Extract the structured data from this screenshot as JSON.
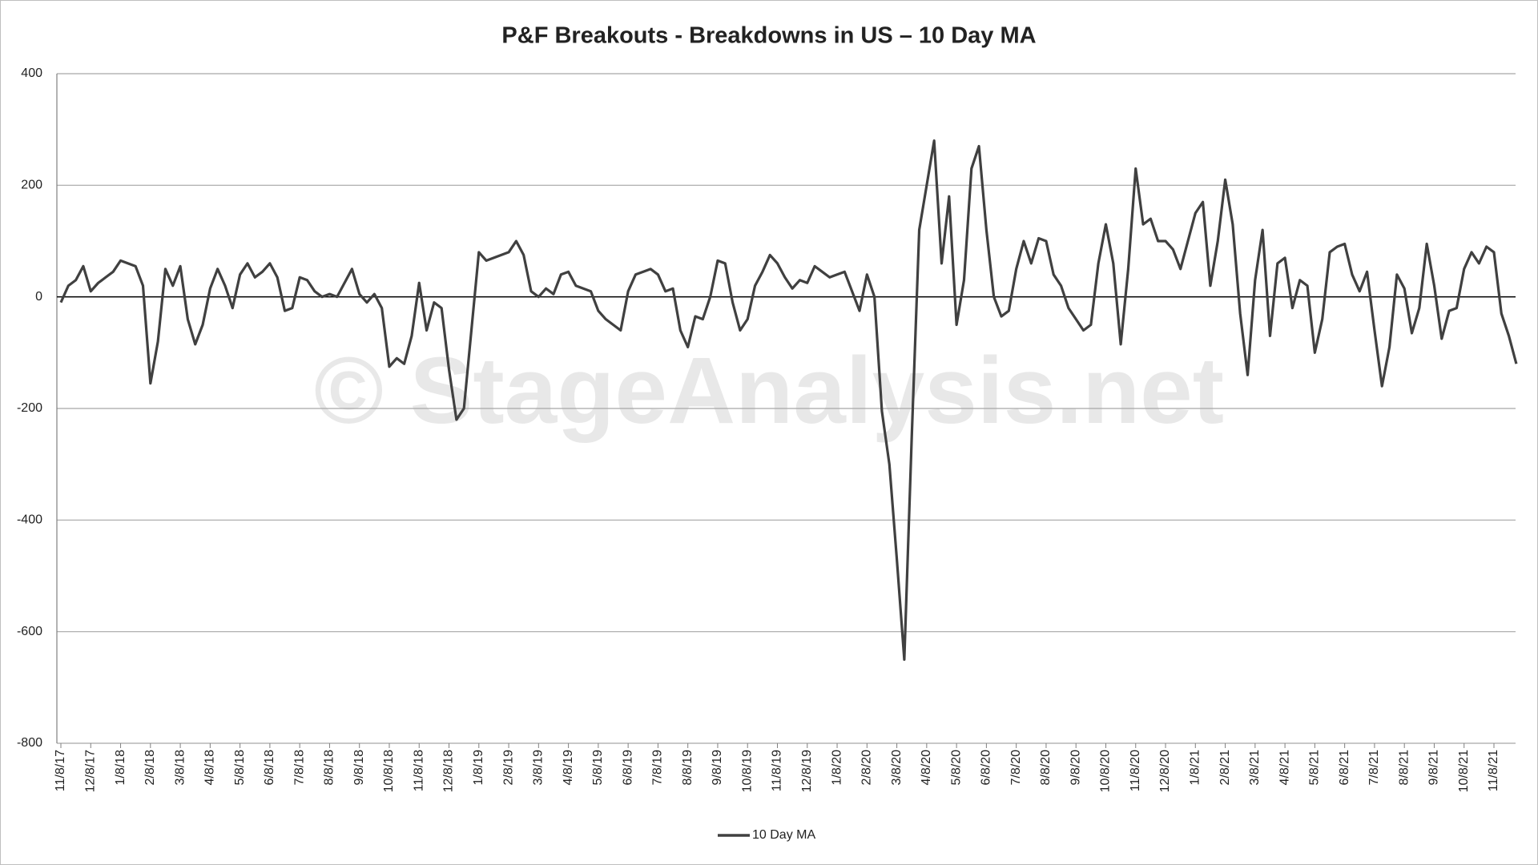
{
  "chart_data": {
    "type": "line",
    "title": "P&F Breakouts - Breakdowns in US – 10 Day MA",
    "watermark": "© StageAnalysis.net",
    "ylim": [
      -800,
      400
    ],
    "yticks": [
      -800,
      -600,
      -400,
      -200,
      0,
      200,
      400
    ],
    "grid": true,
    "legend": "bottom",
    "categories": [
      "11/8/17",
      null,
      null,
      null,
      "12/8/17",
      null,
      null,
      null,
      "1/8/18",
      null,
      null,
      null,
      "2/8/18",
      null,
      null,
      null,
      "3/8/18",
      null,
      null,
      null,
      "4/8/18",
      null,
      null,
      null,
      "5/8/18",
      null,
      null,
      null,
      "6/8/18",
      null,
      null,
      null,
      "7/8/18",
      null,
      null,
      null,
      "8/8/18",
      null,
      null,
      null,
      "9/8/18",
      null,
      null,
      null,
      "10/8/18",
      null,
      null,
      null,
      "11/8/18",
      null,
      null,
      null,
      "12/8/18",
      null,
      null,
      null,
      "1/8/19",
      null,
      null,
      null,
      "2/8/19",
      null,
      null,
      null,
      "3/8/19",
      null,
      null,
      null,
      "4/8/19",
      null,
      null,
      null,
      "5/8/19",
      null,
      null,
      null,
      "6/8/19",
      null,
      null,
      null,
      "7/8/19",
      null,
      null,
      null,
      "8/8/19",
      null,
      null,
      null,
      "9/8/19",
      null,
      null,
      null,
      "10/8/19",
      null,
      null,
      null,
      "11/8/19",
      null,
      null,
      null,
      "12/8/19",
      null,
      null,
      null,
      "1/8/20",
      null,
      null,
      null,
      "2/8/20",
      null,
      null,
      null,
      "3/8/20",
      null,
      null,
      null,
      "4/8/20",
      null,
      null,
      null,
      "5/8/20",
      null,
      null,
      null,
      "6/8/20",
      null,
      null,
      null,
      "7/8/20",
      null,
      null,
      null,
      "8/8/20",
      null,
      null,
      null,
      "9/8/20",
      null,
      null,
      null,
      "10/8/20",
      null,
      null,
      null,
      "11/8/20",
      null,
      null,
      null,
      "12/8/20",
      null,
      null,
      null,
      "1/8/21",
      null,
      null,
      null,
      "2/8/21",
      null,
      null,
      null,
      "3/8/21",
      null,
      null,
      null,
      "4/8/21",
      null,
      null,
      null,
      "5/8/21",
      null,
      null,
      null,
      "6/8/21",
      null,
      null,
      null,
      "7/8/21",
      null,
      null,
      null,
      "8/8/21",
      null,
      null,
      null,
      "9/8/21",
      null,
      null,
      null,
      "10/8/21",
      null,
      null,
      null,
      "11/8/21",
      null,
      null,
      null
    ],
    "series": [
      {
        "name": "10 Day MA",
        "color": "#404040",
        "values": [
          -10,
          20,
          30,
          55,
          10,
          25,
          35,
          45,
          65,
          60,
          55,
          20,
          -155,
          -80,
          50,
          20,
          55,
          -40,
          -85,
          -50,
          15,
          50,
          20,
          -20,
          40,
          60,
          35,
          45,
          60,
          35,
          -25,
          -20,
          35,
          30,
          10,
          0,
          5,
          0,
          25,
          50,
          5,
          -10,
          5,
          -20,
          -125,
          -110,
          -120,
          -70,
          25,
          -60,
          -10,
          -20,
          -130,
          -220,
          -200,
          -60,
          80,
          65,
          70,
          75,
          80,
          100,
          75,
          10,
          0,
          15,
          5,
          40,
          45,
          20,
          15,
          10,
          -25,
          -40,
          -50,
          -60,
          10,
          40,
          45,
          50,
          40,
          10,
          15,
          -60,
          -90,
          -35,
          -40,
          0,
          65,
          60,
          -10,
          -60,
          -40,
          20,
          45,
          75,
          60,
          35,
          15,
          30,
          25,
          55,
          45,
          35,
          40,
          45,
          10,
          -25,
          40,
          0,
          -205,
          -300,
          -470,
          -650,
          -250,
          120,
          200,
          280,
          60,
          180,
          -50,
          30,
          230,
          270,
          120,
          0,
          -35,
          -25,
          50,
          100,
          60,
          105,
          100,
          40,
          20,
          -20,
          -40,
          -60,
          -50,
          60,
          130,
          60,
          -85,
          50,
          230,
          130,
          140,
          100,
          100,
          85,
          50,
          100,
          150,
          170,
          20,
          100,
          210,
          130,
          -30,
          -140,
          30,
          120,
          -70,
          60,
          70,
          -20,
          30,
          20,
          -100,
          -40,
          80,
          90,
          95,
          40,
          10,
          45,
          -60,
          -160,
          -90,
          40,
          15,
          -65,
          -20,
          95,
          20,
          -75,
          -25,
          -20,
          50,
          80,
          60,
          90,
          80,
          -30,
          -70,
          -120
        ]
      }
    ]
  }
}
